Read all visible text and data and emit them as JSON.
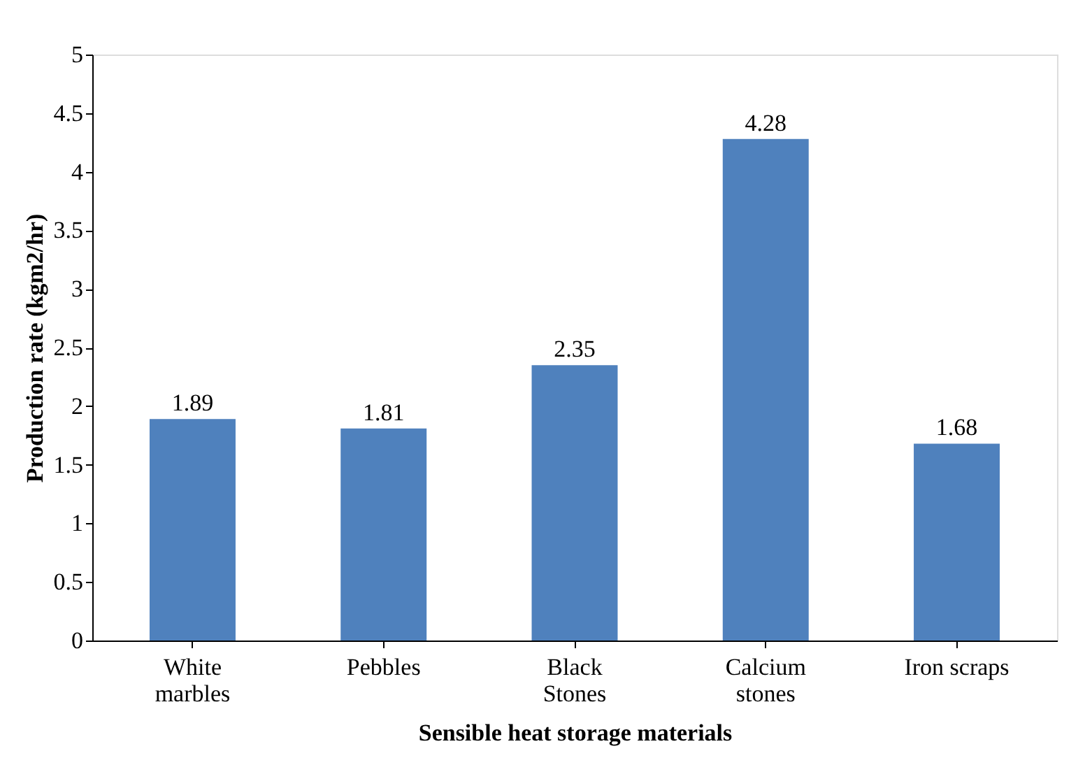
{
  "chart_data": {
    "type": "bar",
    "xlabel": "Sensible heat storage materials",
    "ylabel": "Production rate (kgm2/hr)",
    "categories": [
      "White\nmarbles",
      "Pebbles",
      "Black\nStones",
      "Calcium\nstones",
      "Iron scraps"
    ],
    "values": [
      1.89,
      1.81,
      2.35,
      4.28,
      1.68
    ],
    "color": "#4f81bd",
    "ylim": [
      0,
      5
    ],
    "yticks": [
      0,
      0.5,
      1,
      1.5,
      2,
      2.5,
      3,
      3.5,
      4,
      4.5,
      5
    ],
    "grid": false,
    "data_labels": true
  }
}
